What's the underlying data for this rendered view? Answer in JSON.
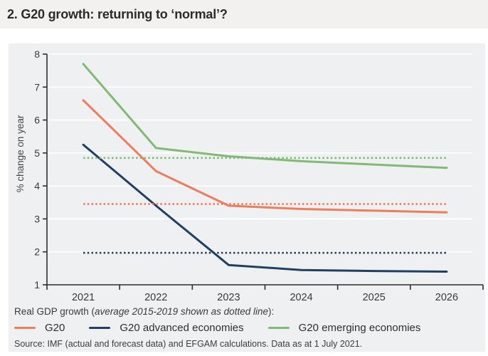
{
  "title": "2. G20 growth: returning to ‘normal’?",
  "caption": {
    "prefix": "Real GDP growth (",
    "italic": "average 2015-2019 shown as dotted line",
    "suffix": "):"
  },
  "source": "Source: IMF (actual and forecast data) and EFGAM calculations. Data as at 1 July 2021.",
  "colors": {
    "title_band_bg": "#f2f1ef",
    "panel_bg": "#eff0f1",
    "gridline": "#ffffff",
    "axis": "#2e2e2e",
    "tick_label": "#3a3a3a",
    "g20": "#ee7d5c",
    "advanced": "#1f3f63",
    "emerging": "#80ba74"
  },
  "chart_data": {
    "type": "line",
    "title": "2. G20 growth: returning to ‘normal’?",
    "categories": [
      "2021",
      "2022",
      "2023",
      "2024",
      "2025",
      "2026"
    ],
    "xlabel": "",
    "ylabel": "% change on year",
    "ylim": [
      1,
      8
    ],
    "yticks": [
      1,
      2,
      3,
      4,
      5,
      6,
      7,
      8
    ],
    "grid": true,
    "legend_position": "bottom",
    "series": [
      {
        "name": "G20",
        "color": "#ee7d5c",
        "values": [
          6.6,
          4.45,
          3.4,
          3.3,
          3.25,
          3.2
        ],
        "avg_2015_2019_dotted": 3.45
      },
      {
        "name": "G20 advanced economies",
        "color": "#1f3f63",
        "values": [
          5.25,
          3.4,
          1.6,
          1.45,
          1.42,
          1.4
        ],
        "avg_2015_2019_dotted": 1.97
      },
      {
        "name": "G20 emerging economies",
        "color": "#80ba74",
        "values": [
          7.7,
          5.15,
          4.9,
          4.75,
          4.65,
          4.55
        ],
        "avg_2015_2019_dotted": 4.85
      }
    ]
  }
}
